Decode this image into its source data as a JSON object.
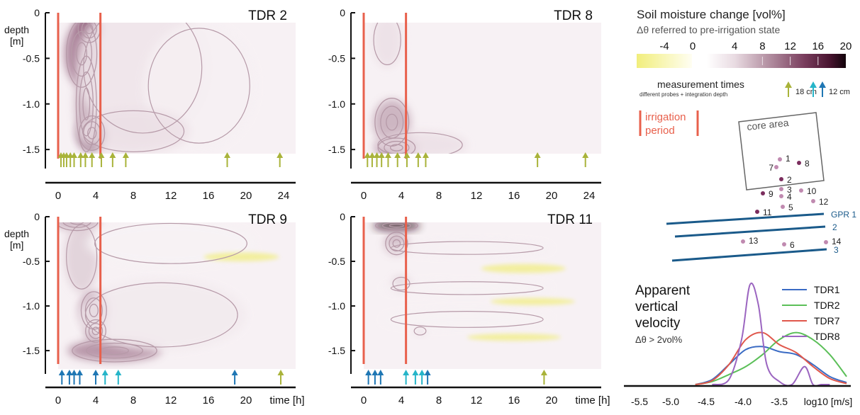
{
  "colors": {
    "irrigation": "#e8604c",
    "arrow18": "#a9b33a",
    "arrow12a": "#1f77b4",
    "arrow12b": "#26b5c9",
    "contour": "#b69aa8",
    "gpr": "#1a5a8a",
    "dark": "#2d0a1e",
    "yellow": "#f1ee7c"
  },
  "panels": [
    {
      "title": "TDR 2",
      "depth_label": "depth\n[m]",
      "yticks": [
        "0",
        "-0.5",
        "-1.0",
        "-1.5"
      ],
      "xticks": [
        "0",
        "4",
        "8",
        "12",
        "16",
        "20",
        "24"
      ],
      "xlabel": "",
      "irrigation_h": [
        0,
        4.5
      ],
      "arrows": [
        {
          "t": 0.3,
          "type": "18"
        },
        {
          "t": 0.6,
          "type": "18"
        },
        {
          "t": 0.9,
          "type": "18"
        },
        {
          "t": 1.3,
          "type": "18"
        },
        {
          "t": 1.7,
          "type": "18"
        },
        {
          "t": 2.4,
          "type": "18"
        },
        {
          "t": 2.9,
          "type": "18"
        },
        {
          "t": 3.6,
          "type": "18"
        },
        {
          "t": 4.6,
          "type": "18"
        },
        {
          "t": 5.8,
          "type": "18"
        },
        {
          "t": 7.2,
          "type": "18"
        },
        {
          "t": 18.0,
          "type": "18"
        },
        {
          "t": 23.6,
          "type": "18"
        }
      ],
      "blobs": [
        {
          "t": 3.3,
          "d": -0.18,
          "rt": 1.3,
          "rd": 0.14,
          "v": 14
        },
        {
          "t": 2.5,
          "d": -0.45,
          "rt": 1.8,
          "rd": 0.35,
          "v": 9
        },
        {
          "t": 3.6,
          "d": -1.32,
          "rt": 1.5,
          "rd": 0.18,
          "v": 16
        },
        {
          "t": 3.0,
          "d": -1.0,
          "rt": 1.2,
          "rd": 0.5,
          "v": 6
        },
        {
          "t": 9.0,
          "d": -0.6,
          "rt": 7.0,
          "rd": 0.8,
          "v": 2.5
        },
        {
          "t": 15.0,
          "d": -0.8,
          "rt": 6.0,
          "rd": 0.7,
          "v": 1.5
        },
        {
          "t": 8.0,
          "d": -1.3,
          "rt": 6.0,
          "rd": 0.25,
          "v": 3
        }
      ],
      "yellow": []
    },
    {
      "title": "TDR 8",
      "depth_label": "",
      "yticks": [
        "0",
        "-0.5",
        "-1.0",
        "-1.5"
      ],
      "xticks": [
        "0",
        "4",
        "8",
        "12",
        "16",
        "20",
        "24"
      ],
      "xlabel": "",
      "irrigation_h": [
        0,
        4.5
      ],
      "arrows": [
        {
          "t": 0.4,
          "type": "18"
        },
        {
          "t": 0.9,
          "type": "18"
        },
        {
          "t": 1.4,
          "type": "18"
        },
        {
          "t": 1.9,
          "type": "18"
        },
        {
          "t": 2.6,
          "type": "18"
        },
        {
          "t": 3.6,
          "type": "18"
        },
        {
          "t": 4.6,
          "type": "18"
        },
        {
          "t": 5.8,
          "type": "18"
        },
        {
          "t": 6.6,
          "type": "18"
        },
        {
          "t": 18.5,
          "type": "18"
        },
        {
          "t": 23.6,
          "type": "18"
        }
      ],
      "blobs": [
        {
          "t": 2.5,
          "d": -0.3,
          "rt": 1.6,
          "rd": 0.3,
          "v": 3
        },
        {
          "t": 3.0,
          "d": -1.2,
          "rt": 2.0,
          "rd": 0.25,
          "v": 6
        },
        {
          "t": 3.5,
          "d": -1.48,
          "rt": 2.2,
          "rd": 0.1,
          "v": 12
        },
        {
          "t": 6.0,
          "d": -1.45,
          "rt": 5.0,
          "rd": 0.15,
          "v": 3
        }
      ],
      "yellow": []
    },
    {
      "title": "TDR 9",
      "depth_label": "depth\n[m]",
      "yticks": [
        "0",
        "-0.5",
        "-1.0",
        "-1.5"
      ],
      "xticks": [
        "0",
        "4",
        "8",
        "12",
        "16",
        "20"
      ],
      "xlabel": "time [h]",
      "irrigation_h": [
        0,
        4.5
      ],
      "arrows": [
        {
          "t": 0.4,
          "type": "12a"
        },
        {
          "t": 1.2,
          "type": "12a"
        },
        {
          "t": 1.7,
          "type": "12a"
        },
        {
          "t": 2.3,
          "type": "12a"
        },
        {
          "t": 4.0,
          "type": "12a"
        },
        {
          "t": 5.0,
          "type": "12b"
        },
        {
          "t": 6.4,
          "type": "12b"
        },
        {
          "t": 18.8,
          "type": "12a"
        },
        {
          "t": 23.7,
          "type": "18"
        }
      ],
      "blobs": [
        {
          "t": 2.0,
          "d": -0.05,
          "rt": 2.5,
          "rd": 0.1,
          "v": 6
        },
        {
          "t": 2.5,
          "d": -0.45,
          "rt": 1.8,
          "rd": 0.4,
          "v": 4
        },
        {
          "t": 3.8,
          "d": -1.05,
          "rt": 1.5,
          "rd": 0.2,
          "v": 9
        },
        {
          "t": 4.0,
          "d": -1.28,
          "rt": 1.2,
          "rd": 0.12,
          "v": 7
        },
        {
          "t": 6.0,
          "d": -1.5,
          "rt": 5.0,
          "rd": 0.12,
          "v": 8
        },
        {
          "t": 11.0,
          "d": -1.1,
          "rt": 9.0,
          "rd": 0.4,
          "v": 2
        },
        {
          "t": 12.0,
          "d": -0.3,
          "rt": 9.0,
          "rd": 0.25,
          "v": 1.2
        }
      ],
      "yellow": [
        {
          "t": 19.5,
          "d": -0.45,
          "rt": 4.0,
          "rd": 0.05
        }
      ]
    },
    {
      "title": "TDR 11",
      "depth_label": "",
      "yticks": [
        "0",
        "-0.5",
        "-1.0",
        "-1.5"
      ],
      "xticks": [
        "0",
        "4",
        "8",
        "12",
        "16",
        "20"
      ],
      "xlabel": "time [h]",
      "irrigation_h": [
        0,
        4.5
      ],
      "arrows": [
        {
          "t": 0.5,
          "type": "12a"
        },
        {
          "t": 1.2,
          "type": "12a"
        },
        {
          "t": 1.8,
          "type": "12a"
        },
        {
          "t": 4.5,
          "type": "12b"
        },
        {
          "t": 5.5,
          "type": "12b"
        },
        {
          "t": 6.2,
          "type": "12b"
        },
        {
          "t": 6.8,
          "type": "12a"
        },
        {
          "t": 19.2,
          "type": "18"
        }
      ],
      "blobs": [
        {
          "t": 3.5,
          "d": -0.1,
          "rt": 2.5,
          "rd": 0.05,
          "v": 20
        },
        {
          "t": 3.5,
          "d": -0.3,
          "rt": 1.3,
          "rd": 0.12,
          "v": 6
        },
        {
          "t": 4.0,
          "d": -0.75,
          "rt": 1.0,
          "rd": 0.08,
          "v": 4
        },
        {
          "t": 6.0,
          "d": -1.28,
          "rt": 0.7,
          "rd": 0.05,
          "v": 3
        },
        {
          "t": 11.0,
          "d": -0.35,
          "rt": 9.0,
          "rd": 0.08,
          "v": 1.5
        },
        {
          "t": 11.0,
          "d": -0.8,
          "rt": 9.0,
          "rd": 0.08,
          "v": 1.3
        },
        {
          "t": 11.0,
          "d": -1.15,
          "rt": 9.0,
          "rd": 0.1,
          "v": 1.3
        }
      ],
      "yellow": [
        {
          "t": 17.0,
          "d": -0.58,
          "rt": 4.5,
          "rd": 0.05
        },
        {
          "t": 18.0,
          "d": -0.95,
          "rt": 4.5,
          "rd": 0.04
        },
        {
          "t": 16.0,
          "d": -1.35,
          "rt": 5.0,
          "rd": 0.04
        }
      ]
    }
  ],
  "colorbar": {
    "title": "Soil moisture change [vol%]",
    "subtitle": "Δθ referred to pre-irrigation state",
    "ticks": [
      "-4",
      "0",
      "4",
      "8",
      "12",
      "16",
      "20"
    ],
    "min": -6,
    "max": 20
  },
  "legend": {
    "measurement_title": "measurement times",
    "measurement_sub": "different probes + integration depth",
    "arrow18_label": "18 cm",
    "arrow12_label": "12 cm",
    "irrigation_label_1": "irrigation",
    "irrigation_label_2": "period"
  },
  "map": {
    "core_label": "core area",
    "probes": [
      {
        "id": "1",
        "dark": false
      },
      {
        "id": "2",
        "dark": true
      },
      {
        "id": "3",
        "dark": false
      },
      {
        "id": "4",
        "dark": false
      },
      {
        "id": "5",
        "dark": false
      },
      {
        "id": "6",
        "dark": false
      },
      {
        "id": "7",
        "dark": false
      },
      {
        "id": "8",
        "dark": true
      },
      {
        "id": "9",
        "dark": true
      },
      {
        "id": "10",
        "dark": false
      },
      {
        "id": "11",
        "dark": true
      },
      {
        "id": "12",
        "dark": false
      },
      {
        "id": "13",
        "dark": false
      },
      {
        "id": "14",
        "dark": false
      }
    ],
    "gpr_labels": [
      "GPR 1",
      "2",
      "3"
    ]
  },
  "chart_data": [
    {
      "type": "heatmap",
      "title": "TDR 2",
      "xlabel": "",
      "ylabel": "depth [m]",
      "xlim": [
        0,
        25
      ],
      "ylim": [
        -1.6,
        0
      ],
      "measurement_times_h": [
        0.3,
        0.6,
        0.9,
        1.3,
        1.7,
        2.4,
        2.9,
        3.6,
        4.6,
        5.8,
        7.2,
        18.0,
        23.6
      ]
    },
    {
      "type": "heatmap",
      "title": "TDR 8",
      "xlim": [
        0,
        25
      ],
      "ylim": [
        -1.6,
        0
      ],
      "measurement_times_h": [
        0.4,
        0.9,
        1.4,
        1.9,
        2.6,
        3.6,
        4.6,
        5.8,
        6.6,
        18.5,
        23.6
      ]
    },
    {
      "type": "heatmap",
      "title": "TDR 9",
      "xlabel": "time [h]",
      "ylabel": "depth [m]",
      "xlim": [
        0,
        25
      ],
      "ylim": [
        -1.6,
        0
      ],
      "measurement_times_h": [
        0.4,
        1.2,
        1.7,
        2.3,
        4.0,
        5.0,
        6.4,
        18.8,
        23.7
      ]
    },
    {
      "type": "heatmap",
      "title": "TDR 11",
      "xlabel": "time [h]",
      "xlim": [
        0,
        25
      ],
      "ylim": [
        -1.6,
        0
      ],
      "measurement_times_h": [
        0.5,
        1.2,
        1.8,
        4.5,
        5.5,
        6.2,
        6.8,
        19.2
      ]
    },
    {
      "type": "line",
      "title": "Apparent vertical velocity",
      "subtitle": "Δθ > 2vol%",
      "xlabel": "log10 [m/s]",
      "xticks": [
        "-5.5",
        "-5.0",
        "-4.5",
        "-4.0",
        "-3.5",
        "log10 [m/s]"
      ],
      "xlim": [
        -5.55,
        -2.85
      ],
      "series": [
        {
          "name": "TDR1",
          "color": "#3a6bc4",
          "x": [
            -4.7,
            -4.5,
            -4.3,
            -4.1,
            -3.9,
            -3.7,
            -3.5,
            -3.3,
            -3.1,
            -2.9
          ],
          "y": [
            0.0,
            0.05,
            0.2,
            0.35,
            0.38,
            0.33,
            0.3,
            0.2,
            0.08,
            0.02
          ]
        },
        {
          "name": "TDR2",
          "color": "#5bbf58",
          "x": [
            -4.7,
            -4.5,
            -4.3,
            -4.1,
            -3.9,
            -3.7,
            -3.5,
            -3.3,
            -3.1,
            -2.9
          ],
          "y": [
            0.0,
            0.03,
            0.1,
            0.18,
            0.3,
            0.45,
            0.52,
            0.45,
            0.3,
            0.08
          ]
        },
        {
          "name": "TDR7",
          "color": "#e0574b",
          "x": [
            -4.7,
            -4.5,
            -4.3,
            -4.1,
            -3.9,
            -3.7,
            -3.5,
            -3.3,
            -3.1,
            -2.9
          ],
          "y": [
            0.0,
            0.04,
            0.2,
            0.45,
            0.52,
            0.4,
            0.32,
            0.18,
            0.06,
            0.01
          ]
        },
        {
          "name": "TDR8",
          "color": "#9b65c0",
          "x": [
            -4.5,
            -4.3,
            -4.15,
            -4.05,
            -3.95,
            -3.85,
            -3.7,
            -3.55,
            -3.4,
            -3.3,
            -3.2,
            -3.1
          ],
          "y": [
            0.0,
            0.05,
            0.45,
            1.0,
            0.8,
            0.2,
            0.03,
            0.0,
            0.18,
            0.0,
            0.0,
            0.0
          ]
        }
      ]
    }
  ]
}
